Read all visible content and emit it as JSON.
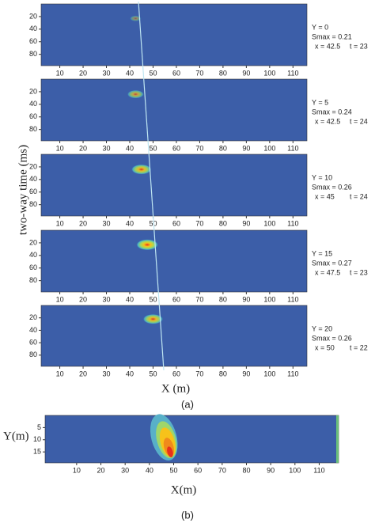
{
  "figure_a": {
    "y_label": "two-way time (ms)",
    "x_label": "X (m)",
    "caption": "(a)"
  },
  "figure_b": {
    "y_label": "Y(m)",
    "x_label": "X(m)",
    "caption": "(b)"
  },
  "chart_data": [
    {
      "type": "heatmap",
      "xlim": [
        2,
        116
      ],
      "ylim": [
        0,
        98
      ],
      "xticks": [
        10,
        20,
        30,
        40,
        50,
        60,
        70,
        80,
        90,
        100,
        110
      ],
      "yticks": [
        20,
        40,
        60,
        80
      ],
      "y_position": {
        "value": 0,
        "label": "Y = 0"
      },
      "smax": {
        "value": 0.21,
        "label": "Smax = 0.21"
      },
      "peak_x": {
        "value": 42.5,
        "label": "x = 42.5"
      },
      "peak_t": {
        "value": 23,
        "label": "t = 23"
      }
    },
    {
      "type": "heatmap",
      "xlim": [
        2,
        116
      ],
      "ylim": [
        0,
        98
      ],
      "xticks": [
        10,
        20,
        30,
        40,
        50,
        60,
        70,
        80,
        90,
        100,
        110
      ],
      "yticks": [
        20,
        40,
        60,
        80
      ],
      "y_position": {
        "value": 5,
        "label": "Y = 5"
      },
      "smax": {
        "value": 0.24,
        "label": "Smax = 0.24"
      },
      "peak_x": {
        "value": 42.5,
        "label": "x = 42.5"
      },
      "peak_t": {
        "value": 24,
        "label": "t = 24"
      }
    },
    {
      "type": "heatmap",
      "xlim": [
        2,
        116
      ],
      "ylim": [
        0,
        98
      ],
      "xticks": [
        10,
        20,
        30,
        40,
        50,
        60,
        70,
        80,
        90,
        100,
        110
      ],
      "yticks": [
        20,
        40,
        60,
        80
      ],
      "y_position": {
        "value": 10,
        "label": "Y = 10"
      },
      "smax": {
        "value": 0.26,
        "label": "Smax = 0.26"
      },
      "peak_x": {
        "value": 45,
        "label": "x = 45"
      },
      "peak_t": {
        "value": 24,
        "label": "t = 24"
      }
    },
    {
      "type": "heatmap",
      "xlim": [
        2,
        116
      ],
      "ylim": [
        0,
        98
      ],
      "xticks": [
        10,
        20,
        30,
        40,
        50,
        60,
        70,
        80,
        90,
        100,
        110
      ],
      "yticks": [
        20,
        40,
        60,
        80
      ],
      "y_position": {
        "value": 15,
        "label": "Y = 15"
      },
      "smax": {
        "value": 0.27,
        "label": "Smax = 0.27"
      },
      "peak_x": {
        "value": 47.5,
        "label": "x = 47.5"
      },
      "peak_t": {
        "value": 23,
        "label": "t = 23"
      }
    },
    {
      "type": "heatmap",
      "xlim": [
        2,
        116
      ],
      "ylim": [
        0,
        98
      ],
      "xticks": [
        10,
        20,
        30,
        40,
        50,
        60,
        70,
        80,
        90,
        100,
        110
      ],
      "yticks": [
        20,
        40,
        60,
        80
      ],
      "y_position": {
        "value": 20,
        "label": "Y = 20"
      },
      "smax": {
        "value": 0.26,
        "label": "Smax = 0.26"
      },
      "peak_x": {
        "value": 50,
        "label": "x = 50"
      },
      "peak_t": {
        "value": 22,
        "label": "t = 22"
      }
    },
    {
      "type": "map",
      "xlim": [
        -3,
        118
      ],
      "ylim": [
        0,
        19.5
      ],
      "xticks": [
        10,
        20,
        30,
        40,
        50,
        60,
        70,
        80,
        90,
        100,
        110
      ],
      "yticks": [
        5,
        10,
        15
      ]
    }
  ]
}
